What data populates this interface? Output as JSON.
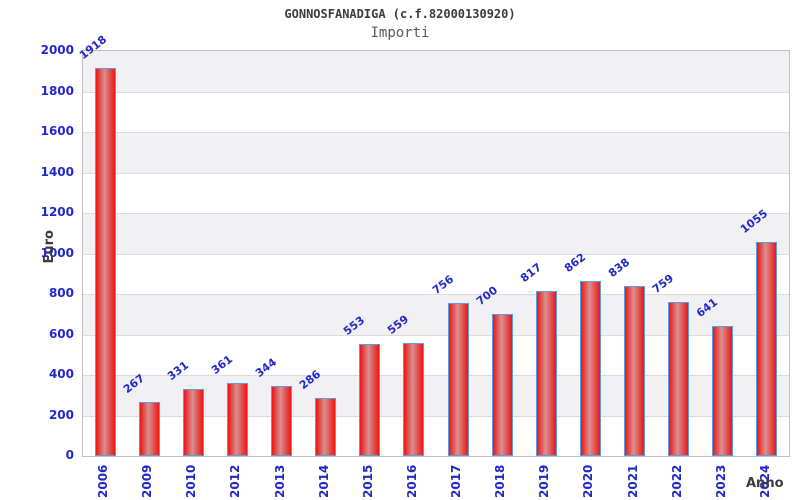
{
  "chart_data": {
    "type": "bar",
    "title": "GONNOSFANADIGA (c.f.82000130920)",
    "subtitle": "Importi",
    "xlabel": "Anno",
    "ylabel": "Euro",
    "categories": [
      "2006",
      "2009",
      "2010",
      "2012",
      "2013",
      "2014",
      "2015",
      "2016",
      "2017",
      "2018",
      "2019",
      "2020",
      "2021",
      "2022",
      "2023",
      "2024"
    ],
    "values": [
      1918,
      267,
      331,
      361,
      344,
      286,
      553,
      559,
      756,
      700,
      817,
      862,
      838,
      759,
      641,
      1055
    ],
    "ylim": [
      0,
      2000
    ],
    "ytick_step": 200,
    "grid": true,
    "legend_position": "none",
    "colors": {
      "bar_fill_edge": "#ee1414",
      "bar_fill_mid": "#d89090",
      "bar_border": "#5c9ce6",
      "tick_label": "#2228c8",
      "value_label": "#2228c8",
      "band_white": "#ffffff",
      "band_gray": "#f1f1f4",
      "gridline": "#dcdcdc",
      "plot_border": "#bfbfc4",
      "title_color": "#3c3c3c",
      "subtitle_color": "#5a5a5a",
      "axis_title_color": "#3c3c3c"
    }
  }
}
